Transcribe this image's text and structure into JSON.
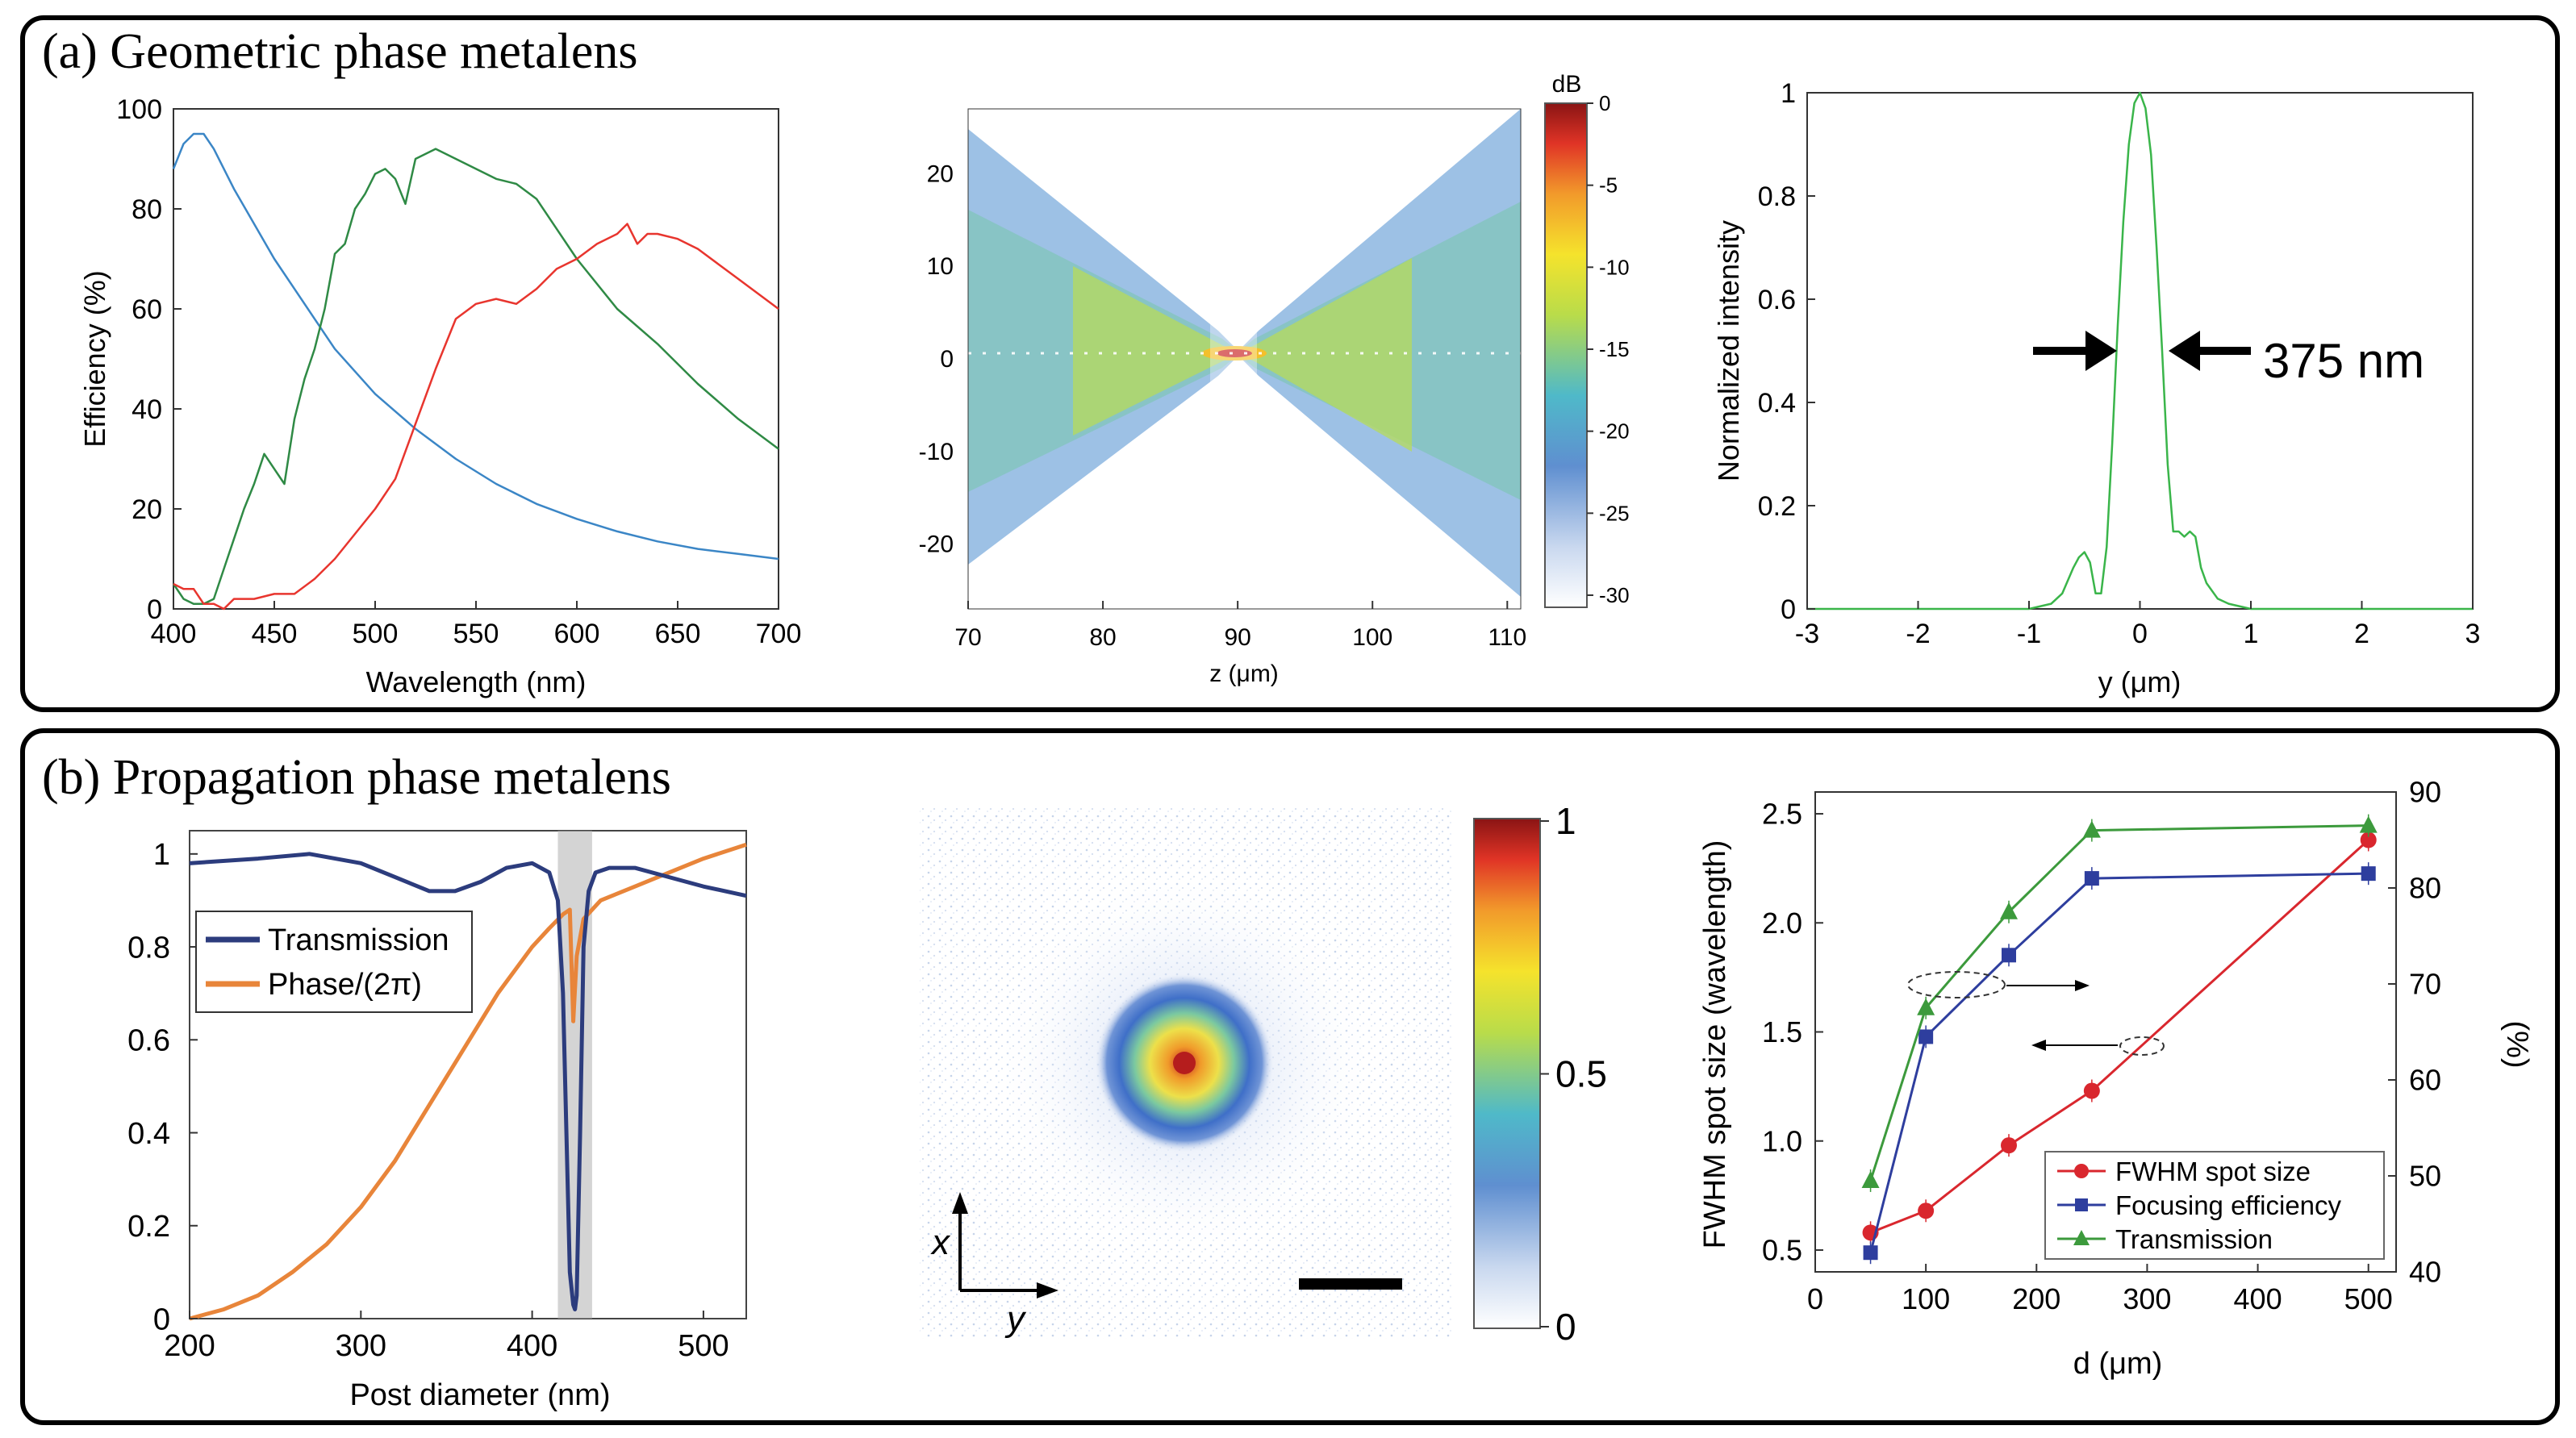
{
  "panels": {
    "a_title": "(a) Geometric phase metalens",
    "b_title": "(b) Propagation phase metalens"
  },
  "chart_data": [
    {
      "id": "a1",
      "type": "line",
      "title": "",
      "xlabel": "Wavelength (nm)",
      "ylabel": "Efficiency (%)",
      "xlim": [
        400,
        700
      ],
      "ylim": [
        0,
        100
      ],
      "xticks": [
        400,
        450,
        500,
        550,
        600,
        650,
        700
      ],
      "yticks": [
        0,
        20,
        40,
        60,
        80,
        100
      ],
      "series": [
        {
          "name": "blue",
          "color": "#3b86c6",
          "x": [
            400,
            405,
            410,
            415,
            420,
            430,
            440,
            450,
            460,
            470,
            480,
            500,
            520,
            540,
            560,
            580,
            600,
            620,
            640,
            660,
            680,
            700
          ],
          "y": [
            88,
            93,
            95,
            95,
            92,
            84,
            77,
            70,
            64,
            58,
            52,
            43,
            36,
            30,
            25,
            21,
            18,
            15.5,
            13.5,
            12,
            11,
            10
          ]
        },
        {
          "name": "green",
          "color": "#2f8a45",
          "x": [
            400,
            405,
            410,
            415,
            420,
            425,
            430,
            435,
            440,
            445,
            450,
            455,
            460,
            465,
            470,
            475,
            480,
            485,
            490,
            495,
            500,
            505,
            510,
            515,
            520,
            530,
            540,
            550,
            560,
            570,
            580,
            590,
            600,
            620,
            640,
            660,
            680,
            700
          ],
          "y": [
            5,
            2,
            1,
            1,
            2,
            8,
            14,
            20,
            25,
            31,
            28,
            25,
            38,
            46,
            52,
            60,
            71,
            73,
            80,
            83,
            87,
            88,
            86,
            81,
            90,
            92,
            90,
            88,
            86,
            85,
            82,
            76,
            70,
            60,
            53,
            45,
            38,
            32
          ]
        },
        {
          "name": "red",
          "color": "#e8352e",
          "x": [
            400,
            405,
            410,
            415,
            420,
            425,
            430,
            440,
            450,
            460,
            470,
            480,
            490,
            500,
            510,
            520,
            530,
            540,
            550,
            560,
            570,
            580,
            590,
            600,
            610,
            620,
            625,
            630,
            635,
            640,
            650,
            660,
            670,
            680,
            690,
            700
          ],
          "y": [
            5,
            4,
            4,
            1,
            1,
            0,
            2,
            2,
            3,
            3,
            6,
            10,
            15,
            20,
            26,
            37,
            48,
            58,
            61,
            62,
            61,
            64,
            68,
            70,
            73,
            75,
            77,
            73,
            75,
            75,
            74,
            72,
            69,
            66,
            63,
            60
          ]
        }
      ]
    },
    {
      "id": "a2",
      "type": "heatmap",
      "xlabel": "z (μm)",
      "ylabel": "",
      "xlim": [
        70,
        111
      ],
      "ylim": [
        -27,
        27
      ],
      "xticks": [
        70,
        80,
        90,
        100,
        110
      ],
      "yticks": [
        20,
        10,
        0,
        -10,
        -20
      ],
      "colorbar": {
        "unit": "dB",
        "ticks": [
          0,
          -5,
          -10,
          -15,
          -20,
          -25,
          -30
        ],
        "range": [
          -30,
          0
        ]
      }
    },
    {
      "id": "a3",
      "type": "line",
      "xlabel": "y (μm)",
      "ylabel": "Normalized intensity",
      "xlim": [
        -3,
        3
      ],
      "ylim": [
        0,
        1
      ],
      "xticks": [
        -3,
        -2,
        -1,
        0,
        1,
        2,
        3
      ],
      "yticks": [
        0,
        0.2,
        0.4,
        0.6,
        0.8,
        1
      ],
      "annotation": "375 nm",
      "series": [
        {
          "name": "intensity",
          "color": "#3ab54a",
          "x": [
            -3,
            -2,
            -1,
            -0.8,
            -0.7,
            -0.6,
            -0.55,
            -0.5,
            -0.45,
            -0.4,
            -0.35,
            -0.3,
            -0.25,
            -0.2,
            -0.15,
            -0.1,
            -0.05,
            0,
            0.05,
            0.1,
            0.15,
            0.2,
            0.25,
            0.3,
            0.35,
            0.4,
            0.45,
            0.5,
            0.55,
            0.6,
            0.7,
            0.8,
            1,
            2,
            3
          ],
          "y": [
            0,
            0,
            0,
            0.01,
            0.03,
            0.08,
            0.1,
            0.11,
            0.09,
            0.03,
            0.03,
            0.12,
            0.32,
            0.55,
            0.75,
            0.9,
            0.98,
            1,
            0.97,
            0.88,
            0.7,
            0.5,
            0.28,
            0.15,
            0.15,
            0.14,
            0.15,
            0.14,
            0.08,
            0.05,
            0.02,
            0.01,
            0,
            0,
            0
          ]
        }
      ]
    },
    {
      "id": "b1",
      "type": "line",
      "xlabel": "Post diameter (nm)",
      "ylabel": "",
      "xlim": [
        200,
        525
      ],
      "ylim": [
        0,
        1.05
      ],
      "xticks": [
        200,
        300,
        400,
        500
      ],
      "yticks": [
        0,
        0.2,
        0.4,
        0.6,
        0.8,
        1
      ],
      "highlight_band": [
        415,
        435
      ],
      "series": [
        {
          "name": "Transmission",
          "color": "#2c3c7d",
          "x": [
            200,
            240,
            270,
            300,
            320,
            340,
            355,
            370,
            385,
            400,
            410,
            415,
            418,
            420,
            422,
            424,
            425,
            426,
            428,
            430,
            433,
            437,
            445,
            460,
            480,
            500,
            525
          ],
          "y": [
            0.98,
            0.99,
            1.0,
            0.98,
            0.95,
            0.92,
            0.92,
            0.94,
            0.97,
            0.98,
            0.96,
            0.9,
            0.7,
            0.4,
            0.1,
            0.03,
            0.02,
            0.05,
            0.4,
            0.8,
            0.92,
            0.96,
            0.97,
            0.97,
            0.95,
            0.93,
            0.91
          ]
        },
        {
          "name": "Phase/(2π)",
          "color": "#e8853a",
          "x": [
            200,
            220,
            240,
            260,
            280,
            300,
            320,
            340,
            360,
            380,
            400,
            410,
            418,
            422,
            424,
            426,
            430,
            440,
            460,
            480,
            500,
            525
          ],
          "y": [
            0,
            0.02,
            0.05,
            0.1,
            0.16,
            0.24,
            0.34,
            0.46,
            0.58,
            0.7,
            0.8,
            0.84,
            0.87,
            0.88,
            0.64,
            0.78,
            0.86,
            0.9,
            0.93,
            0.96,
            0.99,
            1.02
          ]
        }
      ]
    },
    {
      "id": "b2",
      "type": "heatmap",
      "axes_labels": [
        "x",
        "y"
      ],
      "colorbar": {
        "ticks": [
          1,
          0.5,
          0
        ],
        "range": [
          0,
          1
        ]
      }
    },
    {
      "id": "b3",
      "type": "line",
      "xlabel": "d (μm)",
      "ylabel": "FWHM spot size (wavelength)",
      "ylabel_right": "(%)",
      "xlim": [
        0,
        525
      ],
      "ylim": [
        0.4,
        2.6
      ],
      "ylim_right": [
        40,
        90
      ],
      "xticks": [
        0,
        100,
        200,
        300,
        400,
        500
      ],
      "yticks": [
        0.5,
        1.0,
        1.5,
        2.0,
        2.5
      ],
      "yticks_right": [
        40,
        50,
        60,
        70,
        80,
        90
      ],
      "series": [
        {
          "name": "FWHM spot size",
          "color": "#d9272e",
          "marker": "circle",
          "axis": "left",
          "x": [
            50,
            100,
            175,
            250,
            500
          ],
          "y": [
            0.58,
            0.68,
            0.98,
            1.23,
            2.38
          ]
        },
        {
          "name": "Focusing efficiency",
          "color": "#2e3e9e",
          "marker": "square",
          "axis": "right",
          "x": [
            50,
            100,
            175,
            250,
            500
          ],
          "y": [
            42,
            64.5,
            73,
            81,
            81.5
          ]
        },
        {
          "name": "Transmission",
          "color": "#3c9a3c",
          "marker": "triangle",
          "axis": "right",
          "x": [
            50,
            100,
            175,
            250,
            500
          ],
          "y": [
            49.5,
            67.5,
            77.5,
            86,
            86.5
          ]
        }
      ]
    }
  ]
}
